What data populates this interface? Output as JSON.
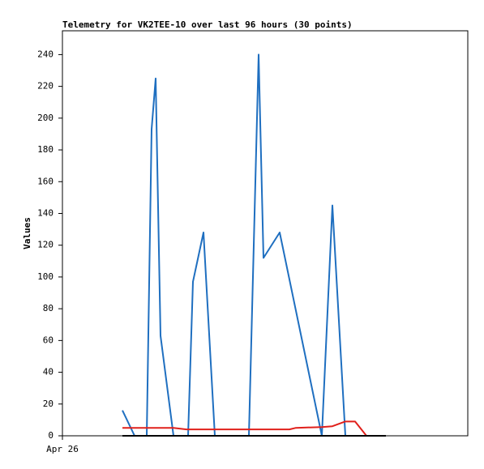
{
  "chart_data": {
    "type": "line",
    "title": "Telemetry for VK2TEE-10 over last 96 hours (30 points)",
    "y_label": "Values",
    "xlim": [
      0,
      100
    ],
    "xticks": [
      {
        "value": 0,
        "label": "Apr 26"
      }
    ],
    "ylim": [
      0,
      255
    ],
    "yticks": [
      0,
      20,
      40,
      60,
      80,
      100,
      120,
      140,
      160,
      180,
      200,
      220,
      240
    ],
    "grid": false,
    "series": [
      {
        "color": "#1f6fc0",
        "x": [
          14.8,
          17.8,
          20.8,
          22,
          23,
          24.2,
          27.4,
          31,
          32.2,
          34.8,
          37.6,
          46,
          48.4,
          49.6,
          53.6,
          64,
          66.6,
          69.8
        ],
        "values": [
          16,
          0,
          0,
          193,
          225,
          63,
          0,
          0,
          97,
          128,
          0,
          0,
          240,
          112,
          128,
          0,
          145,
          0
        ]
      },
      {
        "color": "#e0201b",
        "x": [
          14.8,
          27.4,
          30.6,
          56,
          57.6,
          64,
          66.6,
          69.8,
          72.2,
          75
        ],
        "values": [
          5,
          5,
          4,
          4,
          5,
          5.5,
          6,
          9,
          9,
          0
        ]
      },
      {
        "color": "#000000",
        "x": [
          14.8,
          79.8
        ],
        "values": [
          0,
          0
        ]
      }
    ]
  }
}
